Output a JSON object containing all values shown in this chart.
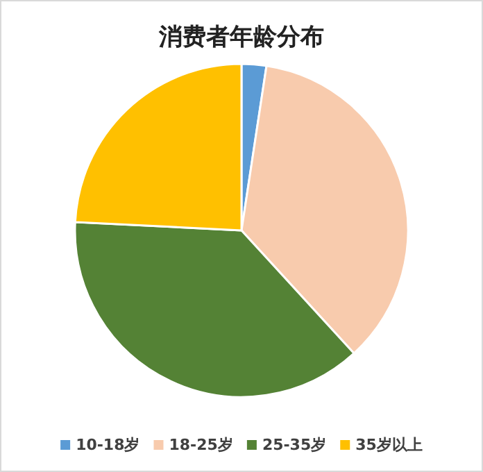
{
  "chart_data": {
    "type": "pie",
    "title": "消费者年龄分布",
    "categories": [
      "10-18岁",
      "18-25岁",
      "25-35岁",
      "35岁以上"
    ],
    "values": [
      2.4,
      35.8,
      37.6,
      24.2
    ],
    "colors": [
      "#5b9bd5",
      "#f8cbad",
      "#548235",
      "#ffc000"
    ],
    "legend": "bottom"
  }
}
